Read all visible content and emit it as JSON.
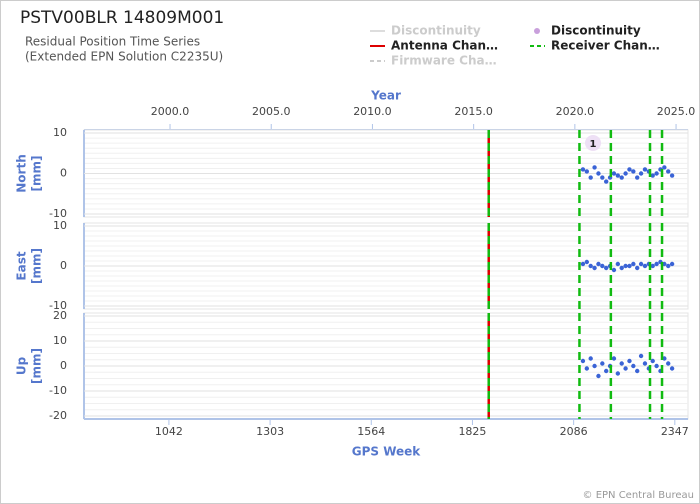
{
  "chart_data": {
    "type": "scatter",
    "title": "PSTV00BLR 14809M001",
    "subtitle": [
      "Residual Position Time Series",
      "(Extended EPN Solution C2235U)"
    ],
    "xlabel": "GPS Week",
    "x2label": "Year",
    "xlim": [
      823,
      2381
    ],
    "xticks": [
      1042,
      1303,
      1564,
      1825,
      2086,
      2347
    ],
    "x2lim": [
      1995.75,
      2025.59
    ],
    "x2ticks": [
      {
        "value": 2000,
        "label": "2000.0"
      },
      {
        "value": 2005,
        "label": "2005.0"
      },
      {
        "value": 2010,
        "label": "2010.0"
      },
      {
        "value": 2015,
        "label": "2015.0"
      },
      {
        "value": 2020,
        "label": "2020.0"
      },
      {
        "value": 2025,
        "label": "2025.0"
      }
    ],
    "color": "#3a63d6",
    "x": [
      2110,
      2120,
      2130,
      2140,
      2150,
      2160,
      2170,
      2180,
      2190,
      2200,
      2210,
      2220,
      2230,
      2240,
      2250,
      2260,
      2270,
      2280,
      2290,
      2300,
      2310,
      2320,
      2330,
      2340
    ],
    "panels": [
      {
        "ylabel": [
          "North",
          "[mm]"
        ],
        "ylim": [
          -10,
          10
        ],
        "yticks": [
          10,
          0,
          -10
        ],
        "values": [
          1,
          0.5,
          -1,
          1.5,
          0,
          -1,
          -2,
          -1,
          0,
          -0.5,
          -1,
          0,
          1,
          0.5,
          -1,
          0,
          1,
          0.5,
          -0.5,
          0,
          1,
          1.5,
          0.5,
          -0.5
        ]
      },
      {
        "ylabel": [
          "East",
          "[mm]"
        ],
        "ylim": [
          -10,
          10
        ],
        "yticks": [
          10,
          0,
          -10
        ],
        "values": [
          0.5,
          1,
          0,
          -0.5,
          0.5,
          0,
          -0.5,
          0,
          -1,
          0.5,
          -0.5,
          0,
          0,
          0.5,
          -0.5,
          0.5,
          0,
          0.5,
          0,
          0.5,
          1,
          0.5,
          0,
          0.5
        ]
      },
      {
        "ylabel": [
          "Up",
          "[mm]"
        ],
        "ylim": [
          -20,
          20
        ],
        "yticks": [
          20,
          10,
          0,
          -10,
          -20
        ],
        "values": [
          2,
          -1,
          3,
          0,
          -4,
          1,
          -2,
          0,
          3,
          -3,
          1,
          -1,
          2,
          0,
          -2,
          4,
          1,
          -1,
          2,
          0,
          -2,
          3,
          1,
          -1
        ]
      }
    ],
    "legend": [
      {
        "name": "Discontinuity",
        "color": "#dddddd",
        "faded": true,
        "style": "line"
      },
      {
        "name": "Antenna Chan…",
        "color": "#dd0000",
        "faded": false,
        "style": "line"
      },
      {
        "name": "Firmware Cha…",
        "color": "#cccccc",
        "faded": true,
        "style": "dash"
      },
      {
        "name": "Discontinuity",
        "color": "#c9a0dc",
        "faded": false,
        "style": "circle"
      },
      {
        "name": "Receiver Chan…",
        "color": "#11bb11",
        "faded": false,
        "style": "dash"
      }
    ],
    "antenna_changes": [
      1867
    ],
    "receiver_changes": [
      1867,
      2101,
      2182,
      2283,
      2314
    ],
    "discontinuities": [
      {
        "x": 2136,
        "id": 1
      }
    ],
    "copyright": "© EPN Central Bureau"
  }
}
